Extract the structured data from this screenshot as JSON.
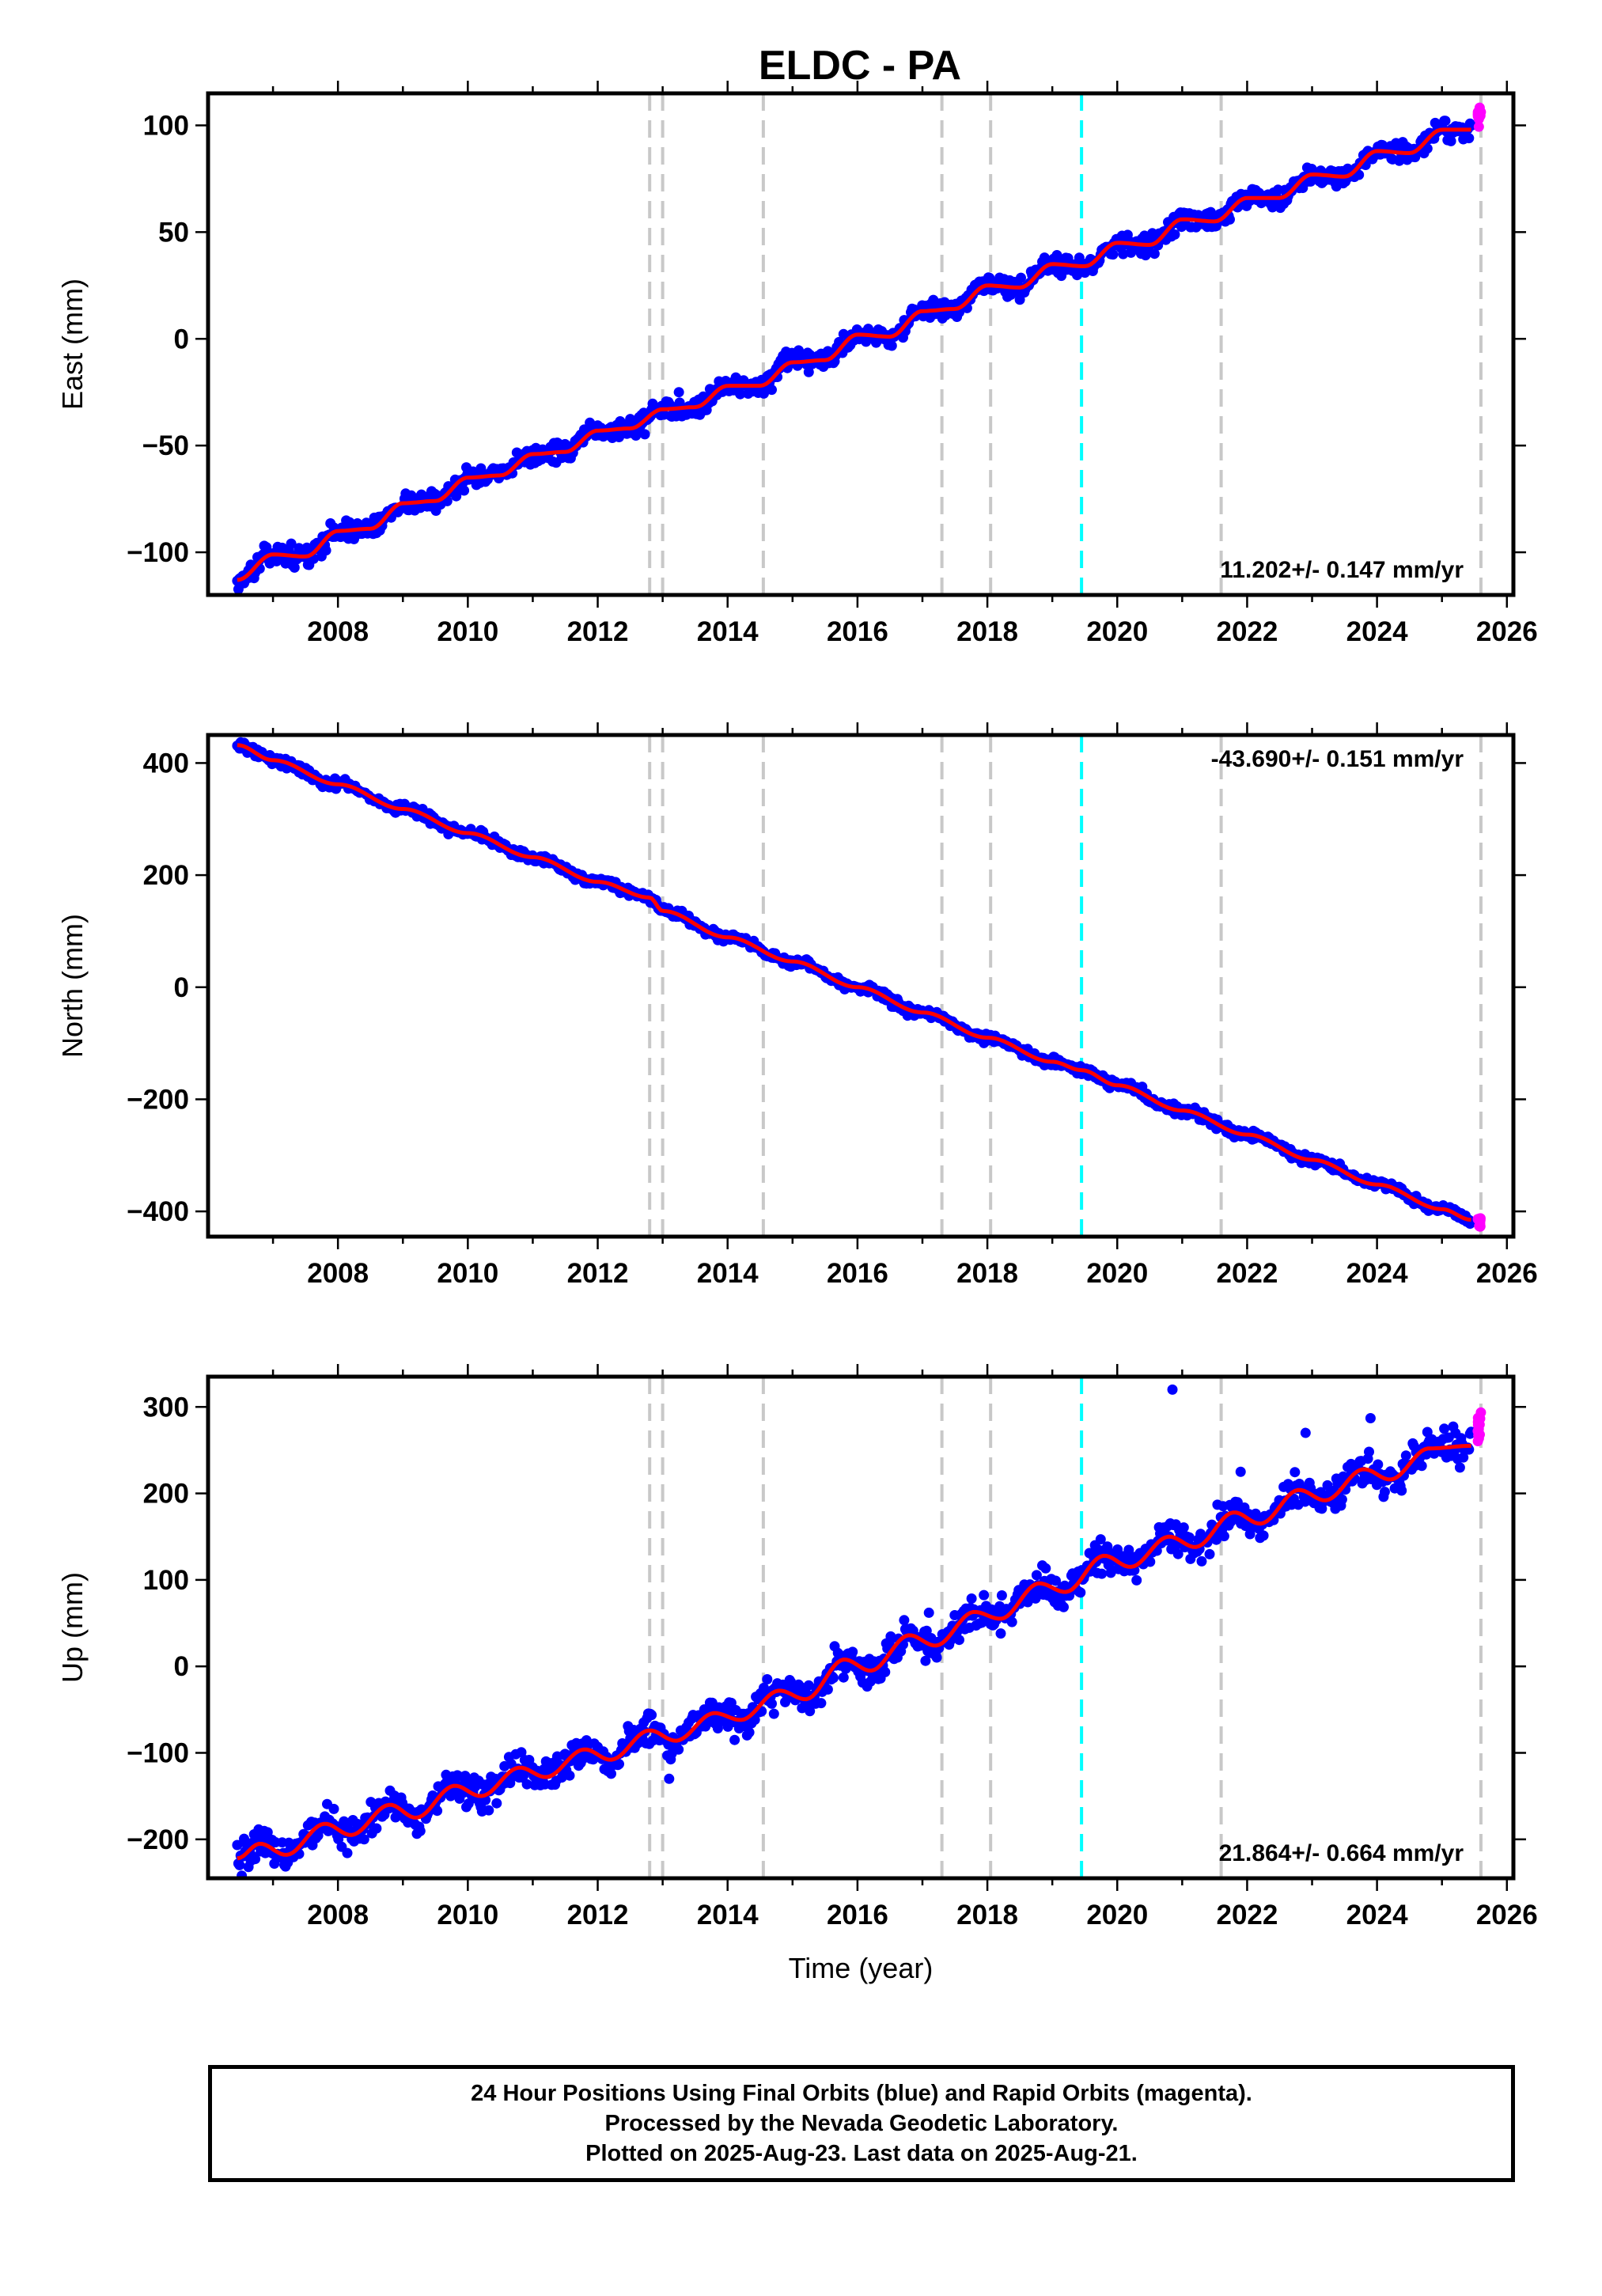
{
  "figure": {
    "title": "ELDC - PA",
    "footer": [
      "24 Hour Positions Using Final Orbits (blue) and Rapid Orbits (magenta).",
      "Processed by the Nevada Geodetic Laboratory.",
      "Plotted on 2025-Aug-23. Last data on 2025-Aug-21."
    ]
  },
  "colors": {
    "final_orbits": "#0000ff",
    "rapid_orbits": "#ff00ff",
    "model_fit": "#ff0000",
    "gray_event_line": "#c8c8c8",
    "cyan_event_line": "#00ffff"
  },
  "chart_data": [
    {
      "type": "scatter",
      "ylabel": "East (mm)",
      "xlim": [
        2006.0,
        2026.1
      ],
      "ylim": [
        -120,
        115
      ],
      "x_ticks": [
        2008,
        2010,
        2012,
        2014,
        2016,
        2018,
        2020,
        2022,
        2024,
        2026
      ],
      "y_ticks": [
        -100,
        -50,
        0,
        50,
        100
      ],
      "y_tick_labels": [
        "−100",
        "−50",
        "0",
        "50",
        "100"
      ],
      "rate_label": "11.202+/- 0.147 mm/yr",
      "rate_label_position": "bottom-right",
      "series": [
        {
          "role": "final",
          "x": [
            2006.45,
            2007.0,
            2007.5,
            2008.0,
            2008.5,
            2009.0,
            2009.5,
            2010.0,
            2010.5,
            2011.0,
            2011.5,
            2012.0,
            2012.5,
            2013.0,
            2013.5,
            2014.0,
            2014.5,
            2015.0,
            2015.5,
            2016.0,
            2016.5,
            2017.0,
            2017.5,
            2018.0,
            2018.5,
            2019.0,
            2019.5,
            2020.0,
            2020.5,
            2021.0,
            2021.5,
            2022.0,
            2022.5,
            2023.0,
            2023.5,
            2024.0,
            2024.5,
            2025.0,
            2025.45
          ],
          "y": [
            -113,
            -101,
            -102,
            -90,
            -89,
            -77,
            -76,
            -65,
            -64,
            -54,
            -53,
            -43,
            -42,
            -33,
            -32,
            -22,
            -22,
            -11,
            -10,
            2,
            1,
            13,
            14,
            25,
            24,
            35,
            34,
            45,
            44,
            56,
            55,
            66,
            66,
            77,
            76,
            88,
            87,
            98,
            98
          ]
        },
        {
          "role": "rapid",
          "x": [
            2025.55,
            2025.6
          ],
          "y": [
            102,
            106
          ]
        },
        {
          "role": "outliers",
          "x": [
            2013.25,
            2014.9
          ],
          "y": [
            -25,
            -6
          ]
        }
      ],
      "event_lines": [
        {
          "x": 2012.8,
          "color": "gray"
        },
        {
          "x": 2013.0,
          "color": "gray"
        },
        {
          "x": 2014.55,
          "color": "gray"
        },
        {
          "x": 2017.3,
          "color": "gray"
        },
        {
          "x": 2018.05,
          "color": "gray"
        },
        {
          "x": 2019.45,
          "color": "cyan"
        },
        {
          "x": 2021.6,
          "color": "gray"
        },
        {
          "x": 2025.6,
          "color": "gray"
        }
      ]
    },
    {
      "type": "scatter",
      "ylabel": "North (mm)",
      "xlim": [
        2006.0,
        2026.1
      ],
      "ylim": [
        -445,
        450
      ],
      "x_ticks": [
        2008,
        2010,
        2012,
        2014,
        2016,
        2018,
        2020,
        2022,
        2024,
        2026
      ],
      "y_ticks": [
        -400,
        -200,
        0,
        200,
        400
      ],
      "y_tick_labels": [
        "−400",
        "−200",
        "0",
        "200",
        "400"
      ],
      "rate_label": "-43.690+/- 0.151 mm/yr",
      "rate_label_position": "top-right",
      "series": [
        {
          "role": "final",
          "x": [
            2006.45,
            2007.0,
            2008.0,
            2009.0,
            2010.0,
            2011.0,
            2012.0,
            2012.8,
            2013.0,
            2014.0,
            2015.0,
            2016.0,
            2017.0,
            2018.0,
            2019.0,
            2019.45,
            2020.0,
            2021.0,
            2022.0,
            2023.0,
            2024.0,
            2025.0,
            2025.45
          ],
          "y": [
            432,
            405,
            362,
            318,
            275,
            232,
            188,
            160,
            136,
            89,
            46,
            0,
            -45,
            -90,
            -133,
            -148,
            -175,
            -220,
            -263,
            -308,
            -352,
            -396,
            -415
          ]
        },
        {
          "role": "rapid",
          "x": [
            2025.55,
            2025.6
          ],
          "y": [
            -418,
            -420
          ]
        }
      ],
      "event_lines": [
        {
          "x": 2012.8,
          "color": "gray"
        },
        {
          "x": 2013.0,
          "color": "gray"
        },
        {
          "x": 2014.55,
          "color": "gray"
        },
        {
          "x": 2017.3,
          "color": "gray"
        },
        {
          "x": 2018.05,
          "color": "gray"
        },
        {
          "x": 2019.45,
          "color": "cyan"
        },
        {
          "x": 2021.6,
          "color": "gray"
        },
        {
          "x": 2025.6,
          "color": "gray"
        }
      ]
    },
    {
      "type": "scatter",
      "ylabel": "Up (mm)",
      "xlabel": "Time (year)",
      "xlim": [
        2006.0,
        2026.1
      ],
      "ylim": [
        -245,
        335
      ],
      "x_ticks": [
        2008,
        2010,
        2012,
        2014,
        2016,
        2018,
        2020,
        2022,
        2024,
        2026
      ],
      "y_ticks": [
        -200,
        -100,
        0,
        100,
        200,
        300
      ],
      "y_tick_labels": [
        "−200",
        "−100",
        "0",
        "100",
        "200",
        "300"
      ],
      "rate_label": "21.864+/- 0.664 mm/yr",
      "rate_label_position": "bottom-right",
      "series": [
        {
          "role": "final",
          "x": [
            2006.45,
            2006.8,
            2007.2,
            2007.8,
            2008.2,
            2008.8,
            2009.2,
            2009.8,
            2010.2,
            2010.8,
            2011.2,
            2011.8,
            2012.2,
            2012.8,
            2013.2,
            2013.8,
            2014.2,
            2014.8,
            2015.2,
            2015.8,
            2016.2,
            2016.8,
            2017.2,
            2017.8,
            2018.2,
            2018.8,
            2019.2,
            2019.8,
            2020.2,
            2020.8,
            2021.2,
            2021.8,
            2022.2,
            2022.8,
            2023.2,
            2023.8,
            2024.2,
            2024.8,
            2025.45
          ],
          "y": [
            -222,
            -205,
            -218,
            -182,
            -195,
            -160,
            -175,
            -138,
            -150,
            -117,
            -128,
            -96,
            -108,
            -74,
            -86,
            -54,
            -62,
            -28,
            -38,
            8,
            -5,
            36,
            24,
            63,
            55,
            96,
            86,
            128,
            115,
            150,
            138,
            178,
            165,
            204,
            192,
            228,
            216,
            252,
            255
          ]
        },
        {
          "role": "rapid",
          "x": [
            2025.55,
            2025.6
          ],
          "y": [
            270,
            282
          ]
        },
        {
          "role": "outliers",
          "x": [
            2009.6,
            2013.1,
            2015.2,
            2017.1,
            2020.85,
            2021.9,
            2022.9,
            2023.9
          ],
          "y": [
            -148,
            -130,
            -42,
            62,
            320,
            225,
            270,
            287
          ]
        }
      ],
      "event_lines": [
        {
          "x": 2012.8,
          "color": "gray"
        },
        {
          "x": 2013.0,
          "color": "gray"
        },
        {
          "x": 2014.55,
          "color": "gray"
        },
        {
          "x": 2017.3,
          "color": "gray"
        },
        {
          "x": 2018.05,
          "color": "gray"
        },
        {
          "x": 2019.45,
          "color": "cyan"
        },
        {
          "x": 2021.6,
          "color": "gray"
        },
        {
          "x": 2025.6,
          "color": "gray"
        }
      ]
    }
  ]
}
